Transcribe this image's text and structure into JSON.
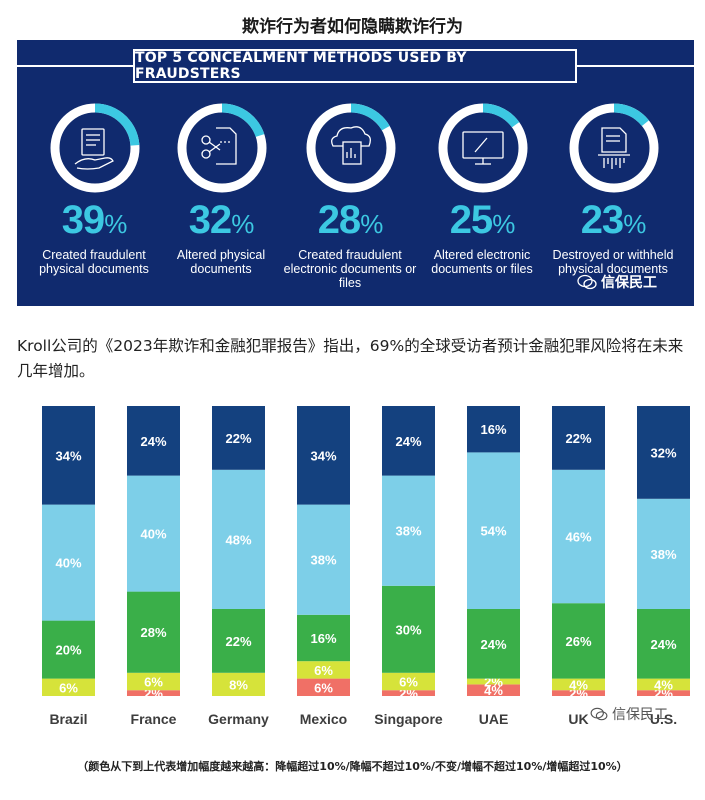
{
  "page_title": "欺诈行为者如何隐瞒欺诈行为",
  "infographic": {
    "heading": "TOP 5 CONCEALMENT METHODS USED BY FRAUDSTERS",
    "accent_color": "#3cc8e2",
    "background_color": "#102a6e",
    "methods": [
      {
        "value": "39",
        "unit": "%",
        "label": "Created fraudulent physical documents",
        "icon": "hand-document-icon"
      },
      {
        "value": "32",
        "unit": "%",
        "label": "Altered physical documents",
        "icon": "scissors-document-icon"
      },
      {
        "value": "28",
        "unit": "%",
        "label": "Created fraudulent electronic documents or files",
        "icon": "cloud-document-icon"
      },
      {
        "value": "25",
        "unit": "%",
        "label": "Altered electronic documents or files",
        "icon": "monitor-edit-icon"
      },
      {
        "value": "23",
        "unit": "%",
        "label": "Destroyed or withheld physical documents",
        "icon": "shredded-document-icon"
      }
    ]
  },
  "watermark": {
    "text": "信保民工",
    "icon": "wechat-icon"
  },
  "intro_text": "Kroll公司的《2023年欺诈和金融犯罪报告》指出，69%的全球受访者预计金融犯罪风险将在未来几年增加。",
  "chart_data": {
    "type": "bar",
    "stacked": true,
    "normalized": true,
    "categories": [
      "Brazil",
      "France",
      "Germany",
      "Mexico",
      "Singapore",
      "UAE",
      "UK",
      "U.S."
    ],
    "series": [
      {
        "color": "#f07066",
        "values": [
          0,
          2,
          0,
          6,
          2,
          4,
          2,
          2
        ],
        "labels": [
          "",
          "2%",
          "",
          "6%",
          "2%",
          "4%",
          "2%",
          "2%"
        ]
      },
      {
        "color": "#d6e33a",
        "values": [
          6,
          6,
          8,
          6,
          6,
          2,
          4,
          4
        ],
        "labels": [
          "6%",
          "6%",
          "8%",
          "6%",
          "6%",
          "2%",
          "4%",
          "4%"
        ]
      },
      {
        "color": "#3aaf49",
        "values": [
          20,
          28,
          22,
          16,
          30,
          24,
          26,
          24
        ],
        "labels": [
          "20%",
          "28%",
          "22%",
          "16%",
          "30%",
          "24%",
          "26%",
          "24%"
        ]
      },
      {
        "color": "#7dcfe8",
        "values": [
          40,
          40,
          48,
          38,
          38,
          54,
          46,
          38
        ],
        "labels": [
          "40%",
          "40%",
          "48%",
          "38%",
          "38%",
          "54%",
          "46%",
          "38%"
        ]
      },
      {
        "color": "#14417f",
        "values": [
          34,
          24,
          22,
          34,
          24,
          16,
          22,
          32
        ],
        "labels": [
          "34%",
          "24%",
          "22%",
          "34%",
          "24%",
          "16%",
          "22%",
          "32%"
        ]
      }
    ],
    "note": "（颜色从下到上代表增加幅度越来越高：降幅超过10%/降幅不超过10%/不变/增幅不超过10%/增幅超过10%）"
  }
}
